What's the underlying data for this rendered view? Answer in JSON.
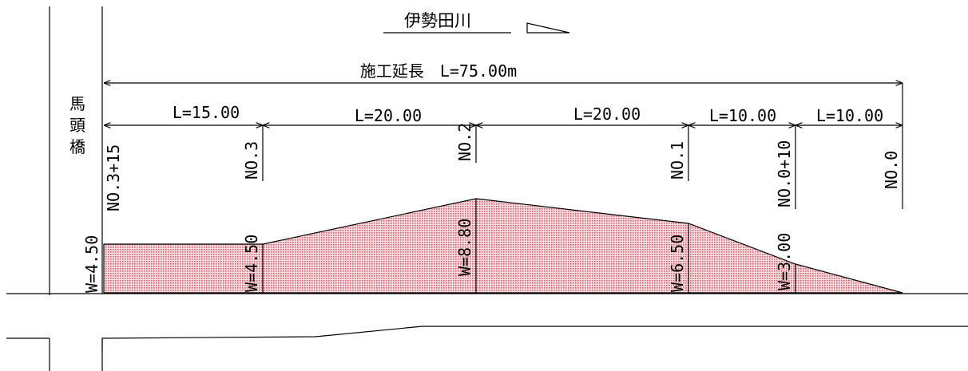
{
  "river": {
    "name": "伊勢田川"
  },
  "total": {
    "label": "施工延長　L=75.00m"
  },
  "bridge": {
    "chars": [
      "馬",
      "頭",
      "橋"
    ]
  },
  "segments": [
    "L=15.00",
    "L=20.00",
    "L=20.00",
    "L=10.00",
    "L=10.00"
  ],
  "stations": [
    "NO.3+15",
    "NO.3",
    "NO.2",
    "NO.1",
    "NO.0+10",
    "NO.0"
  ],
  "widths": [
    "W=4.50",
    "W=4.50",
    "W=8.80",
    "W=6.50",
    "W=3.00"
  ],
  "colors": {
    "fill": "#e8a4ad",
    "line": "#000000",
    "background": "#ffffff"
  }
}
